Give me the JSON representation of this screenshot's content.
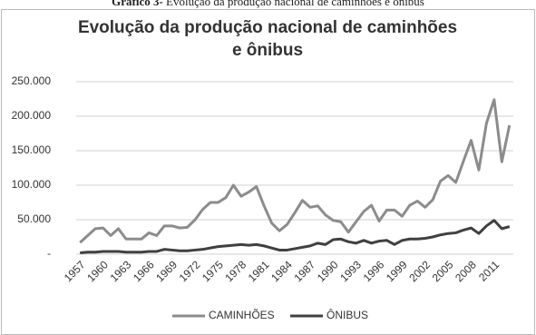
{
  "chart_data": {
    "type": "line",
    "caption_label": "Gráfico 3-",
    "caption": "Evolução da produção nacional de caminhões e ônibus",
    "title": "Evolução da produção nacional de caminhões e ônibus",
    "categories": [
      "1957",
      null,
      null,
      "1960",
      null,
      null,
      "1963",
      null,
      null,
      "1966",
      null,
      null,
      "1969",
      null,
      null,
      "1972",
      null,
      null,
      "1975",
      null,
      null,
      "1978",
      null,
      null,
      "1981",
      null,
      null,
      "1984",
      null,
      null,
      "1987",
      null,
      null,
      "1990",
      null,
      null,
      "1993",
      null,
      null,
      "1996",
      null,
      null,
      "1999",
      null,
      null,
      "2002",
      null,
      null,
      "2005",
      null,
      null,
      "2008",
      null,
      null,
      "2011",
      null,
      null
    ],
    "series": [
      {
        "name": "CAMINHÕES",
        "color": "#8c8c8c",
        "values": [
          17000,
          27000,
          37000,
          38000,
          27000,
          37000,
          22000,
          22000,
          22000,
          31000,
          27000,
          41000,
          41000,
          38000,
          39000,
          50000,
          65000,
          75000,
          75000,
          82000,
          100000,
          84000,
          90000,
          98000,
          70000,
          45000,
          34000,
          43000,
          60000,
          78000,
          68000,
          70000,
          57000,
          49000,
          47000,
          32000,
          47000,
          62000,
          71000,
          48000,
          64000,
          64000,
          55000,
          71000,
          77000,
          68000,
          79000,
          106000,
          114000,
          104000,
          135000,
          165000,
          122000,
          190000,
          224000,
          134000,
          187000
        ]
      },
      {
        "name": "ÔNIBUS",
        "color": "#404040",
        "values": [
          2000,
          3000,
          3000,
          4000,
          4000,
          4000,
          3000,
          3000,
          3000,
          4000,
          4000,
          7000,
          6000,
          5000,
          5000,
          6000,
          7000,
          9000,
          11000,
          12000,
          13000,
          14000,
          13000,
          14000,
          12000,
          9000,
          6000,
          6000,
          8000,
          10000,
          12000,
          16000,
          14000,
          21000,
          22000,
          18000,
          16000,
          20000,
          16000,
          19000,
          20000,
          14000,
          20000,
          22000,
          22000,
          23000,
          25000,
          28000,
          30000,
          31000,
          35000,
          38000,
          30000,
          41000,
          49000,
          37000,
          40000
        ]
      }
    ],
    "ylim": [
      0,
      250000
    ],
    "yticks": [
      {
        "value": 0,
        "label": "-"
      },
      {
        "value": 50000,
        "label": "50.000"
      },
      {
        "value": 100000,
        "label": "100.000"
      },
      {
        "value": 150000,
        "label": "150.000"
      },
      {
        "value": 200000,
        "label": "200.000"
      },
      {
        "value": 250000,
        "label": "250.000"
      }
    ],
    "grid": true,
    "legend": "bottom"
  }
}
